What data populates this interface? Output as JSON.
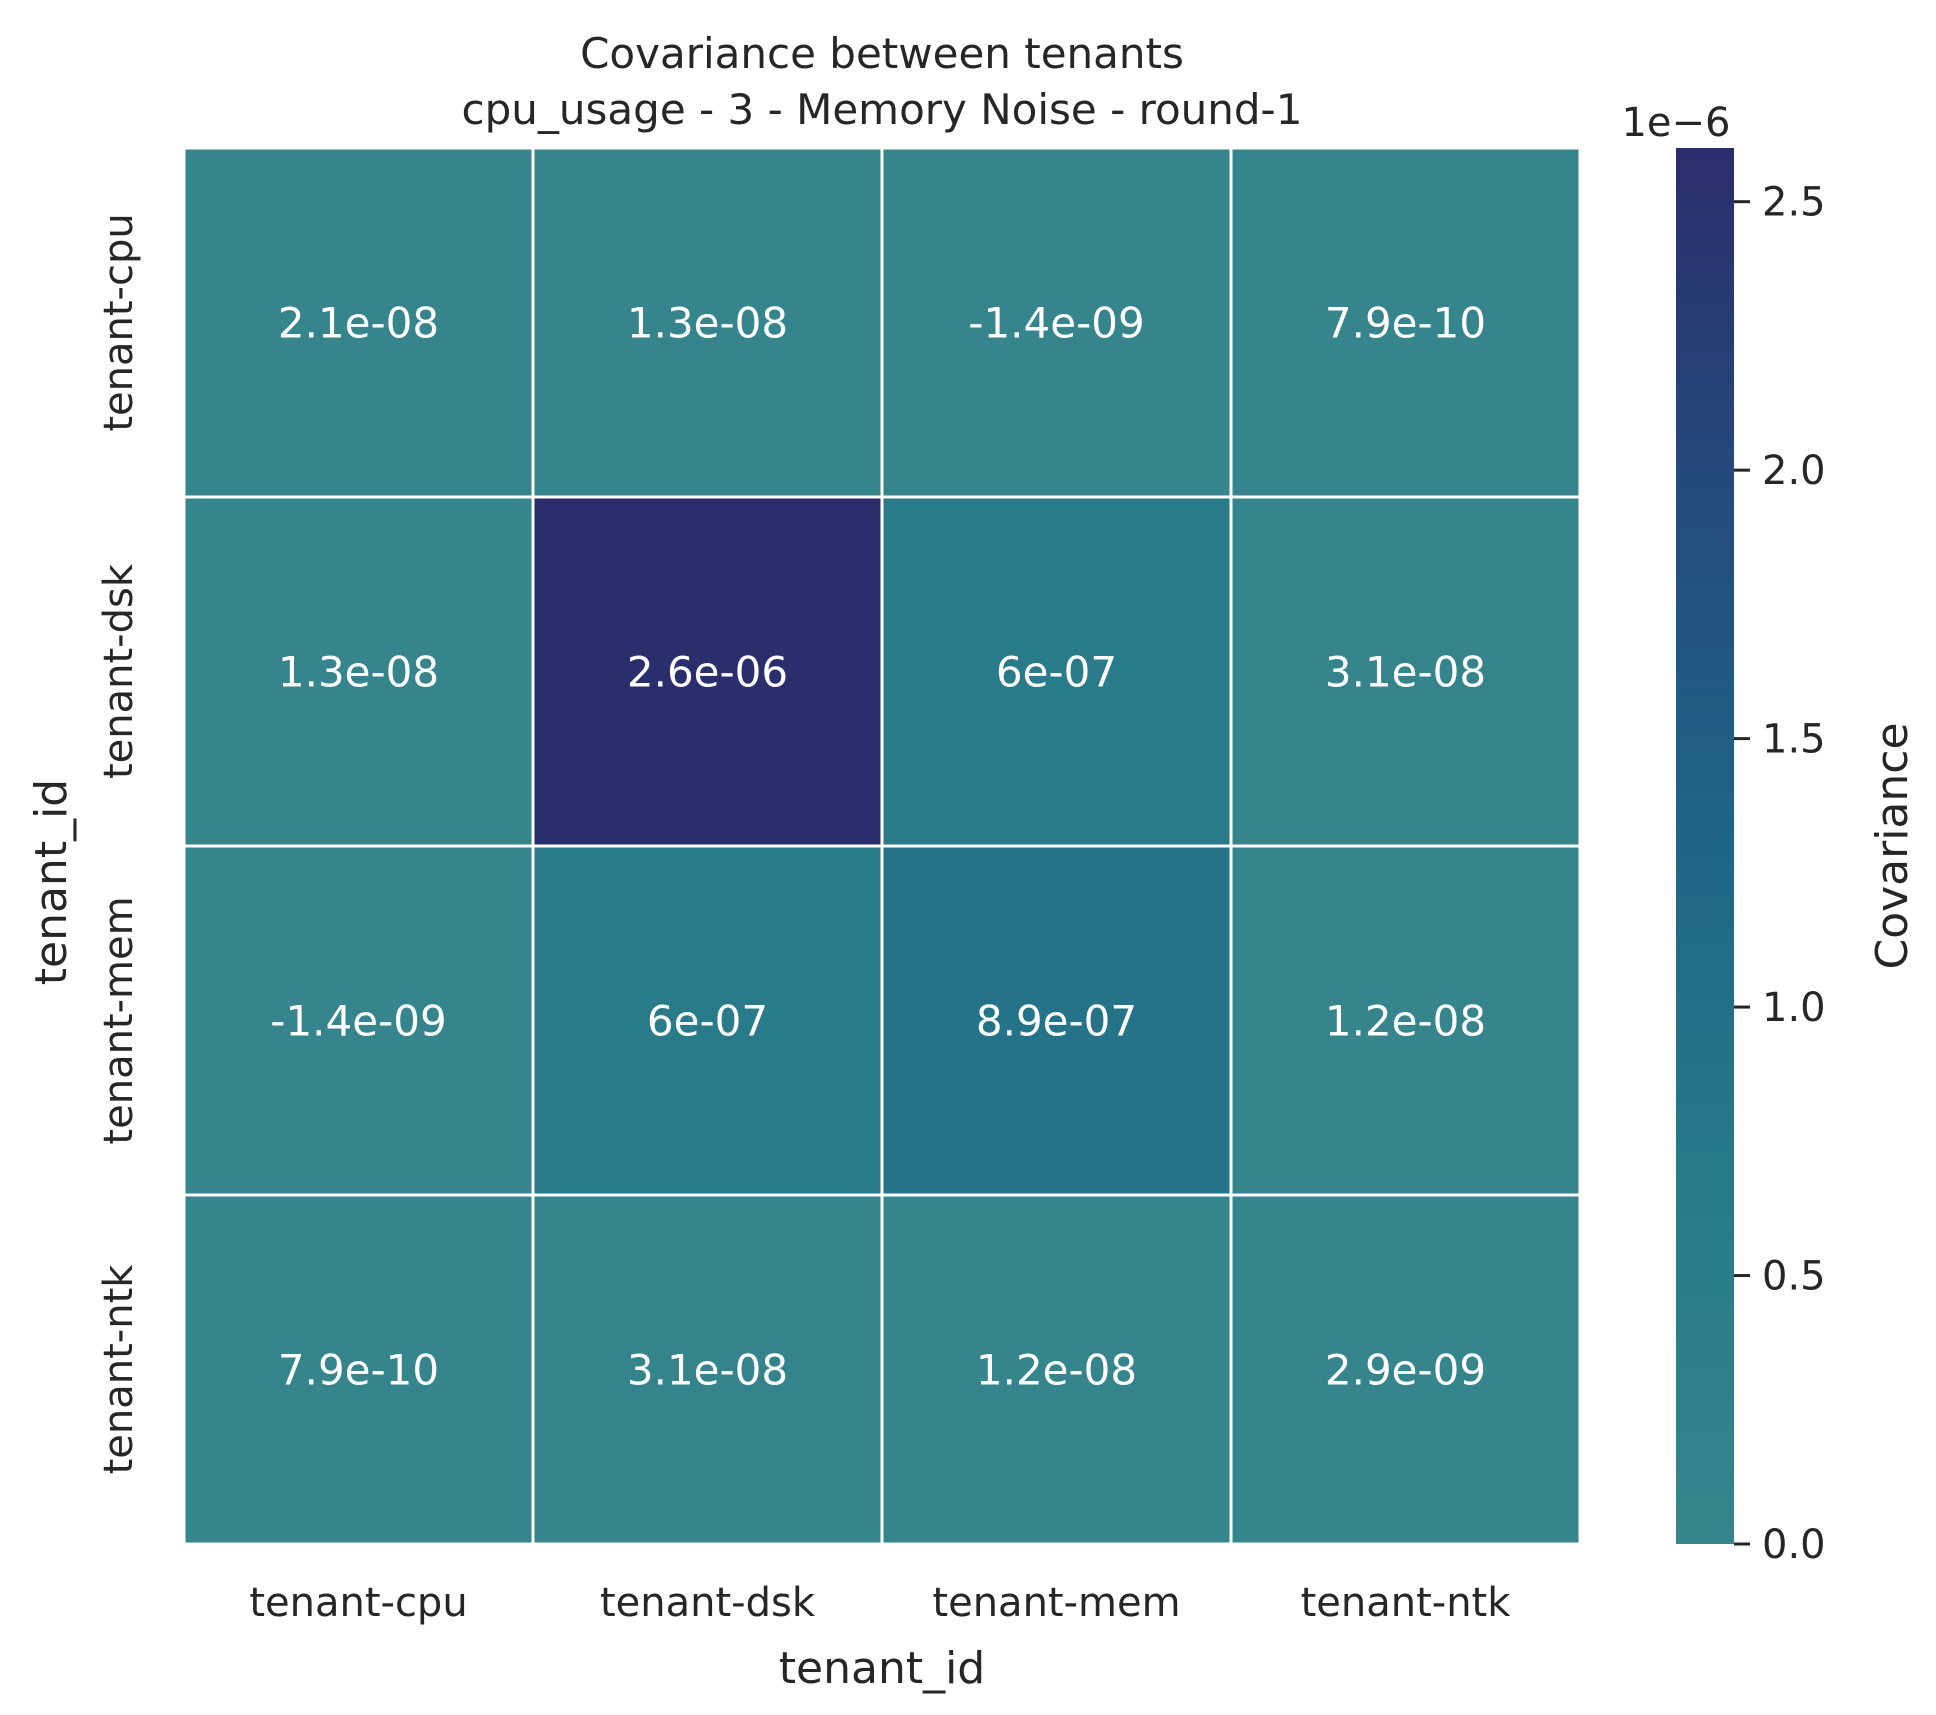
{
  "chart_data": {
    "type": "heatmap",
    "title": "Covariance between tenants",
    "subtitle": "cpu_usage - 3 - Memory Noise - round-1",
    "xlabel": "tenant_id",
    "ylabel": "tenant_id",
    "x_categories": [
      "tenant-cpu",
      "tenant-dsk",
      "tenant-mem",
      "tenant-ntk"
    ],
    "y_categories": [
      "tenant-cpu",
      "tenant-dsk",
      "tenant-mem",
      "tenant-ntk"
    ],
    "values": [
      [
        2.1e-08,
        1.3e-08,
        -1.4e-09,
        7.9e-10
      ],
      [
        1.3e-08,
        2.6e-06,
        6e-07,
        3.1e-08
      ],
      [
        -1.4e-09,
        6e-07,
        8.9e-07,
        1.2e-08
      ],
      [
        7.9e-10,
        3.1e-08,
        1.2e-08,
        2.9e-09
      ]
    ],
    "annotations": [
      [
        "2.1e-08",
        "1.3e-08",
        "-1.4e-09",
        "7.9e-10"
      ],
      [
        "1.3e-08",
        "2.6e-06",
        "6e-07",
        "3.1e-08"
      ],
      [
        "-1.4e-09",
        "6e-07",
        "8.9e-07",
        "1.2e-08"
      ],
      [
        "7.9e-10",
        "3.1e-08",
        "1.2e-08",
        "2.9e-09"
      ]
    ],
    "colorbar": {
      "label": "Covariance",
      "offset_text": "1e−6",
      "range": [
        0,
        2.6
      ],
      "ticks": [
        0.0,
        0.5,
        1.0,
        1.5,
        2.0,
        2.5
      ],
      "tick_labels": [
        "0.0",
        "0.5",
        "1.0",
        "1.5",
        "2.0",
        "2.5"
      ],
      "low_color": "#36858c",
      "high_color": "#2b2e6c"
    },
    "grid": false
  }
}
